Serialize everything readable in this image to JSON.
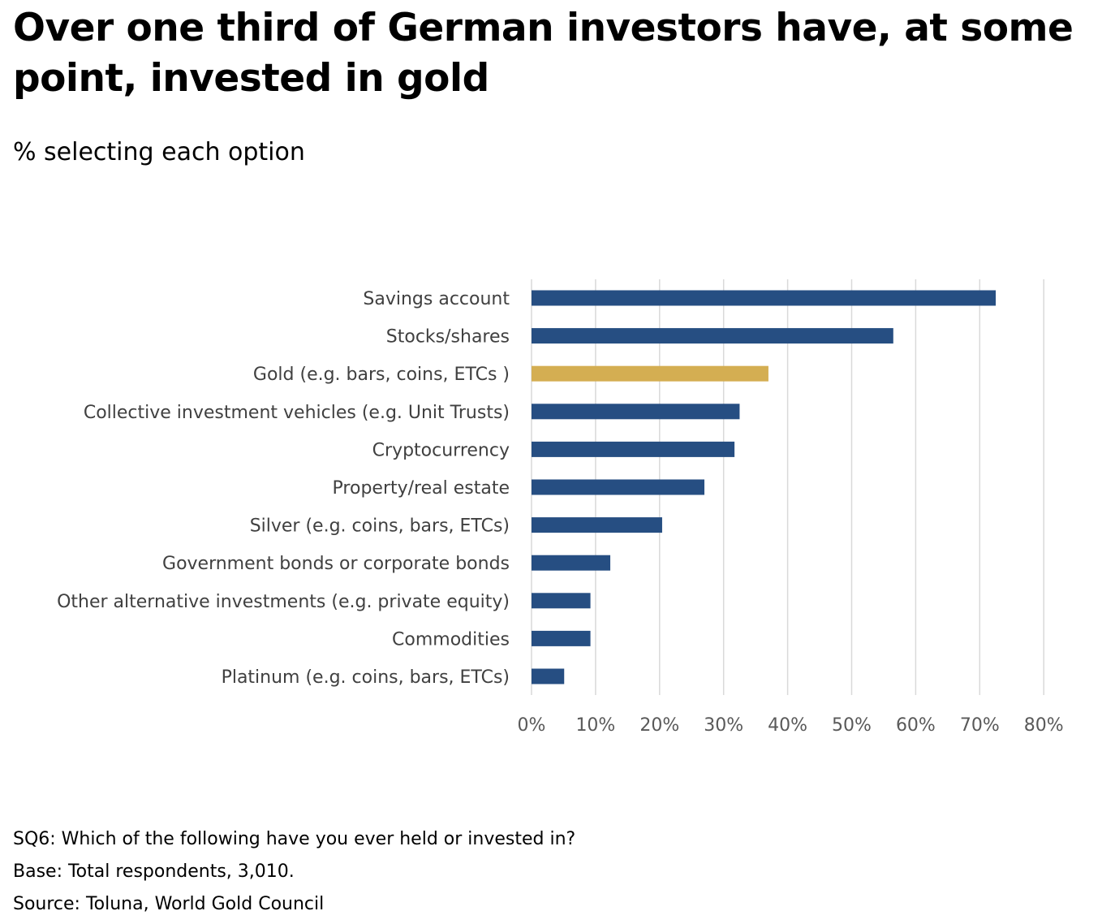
{
  "chart_data": {
    "type": "bar",
    "orientation": "horizontal",
    "title": "Over one third of German investors have, at some point, invested in gold",
    "subtitle": "% selecting each option",
    "categories": [
      "Savings account",
      "Stocks/shares",
      "Gold (e.g.  bars, coins, ETCs )",
      "Collective investment vehicles (e.g. Unit Trusts)",
      "Cryptocurrency",
      "Property/real estate",
      "Silver (e.g.  coins, bars, ETCs)",
      "Government bonds or corporate bonds",
      "Other alternative investments (e.g. private equity)",
      "Commodities",
      "Platinum (e.g. coins, bars, ETCs)"
    ],
    "values": [
      72.5,
      56.5,
      37,
      32.5,
      31.7,
      27,
      20.4,
      12.3,
      9.2,
      9.2,
      5.1
    ],
    "highlight_index": 2,
    "xlim": [
      0,
      80
    ],
    "xticks": [
      0,
      10,
      20,
      30,
      40,
      50,
      60,
      70,
      80
    ],
    "xtick_labels": [
      "0%",
      "10%",
      "20%",
      "30%",
      "40%",
      "50%",
      "60%",
      "70%",
      "80%"
    ],
    "grid": "vertical",
    "legend": "none",
    "colors": {
      "bar": "#264e82",
      "highlight": "#d4ae52",
      "grid": "#d9d9d9",
      "category_text": "#404040",
      "tick_text": "#595959"
    }
  },
  "footnotes": {
    "question": "SQ6: Which of the following have you ever held or invested in?",
    "base": "Base: Total respondents, 3,010.",
    "source": "Source: Toluna, World Gold Council"
  }
}
